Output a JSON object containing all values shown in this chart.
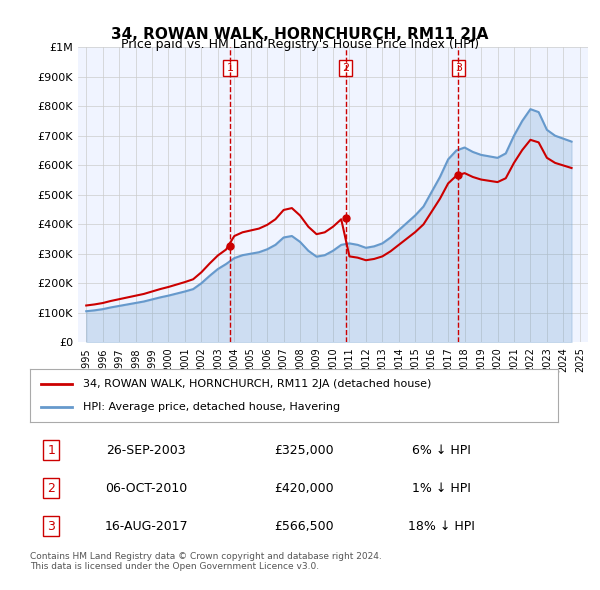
{
  "title": "34, ROWAN WALK, HORNCHURCH, RM11 2JA",
  "subtitle": "Price paid vs. HM Land Registry's House Price Index (HPI)",
  "hpi_years": [
    1995,
    1995.5,
    1996,
    1996.5,
    1997,
    1997.5,
    1998,
    1998.5,
    1999,
    1999.5,
    2000,
    2000.5,
    2001,
    2001.5,
    2002,
    2002.5,
    2003,
    2003.5,
    2004,
    2004.5,
    2005,
    2005.5,
    2006,
    2006.5,
    2007,
    2007.5,
    2008,
    2008.5,
    2009,
    2009.5,
    2010,
    2010.5,
    2011,
    2011.5,
    2012,
    2012.5,
    2013,
    2013.5,
    2014,
    2014.5,
    2015,
    2015.5,
    2016,
    2016.5,
    2017,
    2017.5,
    2018,
    2018.5,
    2019,
    2019.5,
    2020,
    2020.5,
    2021,
    2021.5,
    2022,
    2022.5,
    2023,
    2023.5,
    2024,
    2024.5
  ],
  "hpi_values": [
    105000,
    108000,
    112000,
    118000,
    123000,
    128000,
    133000,
    138000,
    145000,
    152000,
    158000,
    165000,
    172000,
    180000,
    200000,
    225000,
    248000,
    265000,
    285000,
    295000,
    300000,
    305000,
    315000,
    330000,
    355000,
    360000,
    340000,
    310000,
    290000,
    295000,
    310000,
    330000,
    335000,
    330000,
    320000,
    325000,
    335000,
    355000,
    380000,
    405000,
    430000,
    460000,
    510000,
    560000,
    620000,
    650000,
    660000,
    645000,
    635000,
    630000,
    625000,
    640000,
    700000,
    750000,
    790000,
    780000,
    720000,
    700000,
    690000,
    680000
  ],
  "sale_years": [
    2003.73,
    2010.76,
    2017.62
  ],
  "sale_values": [
    325000,
    420000,
    566500
  ],
  "sale_labels": [
    "1",
    "2",
    "3"
  ],
  "vline_color": "#cc0000",
  "hpi_color": "#6699cc",
  "sale_color": "#cc0000",
  "bg_color": "#f0f4ff",
  "plot_bg": "#ffffff",
  "ylim": [
    0,
    1000000
  ],
  "xlim": [
    1994.5,
    2025.5
  ],
  "legend1": "34, ROWAN WALK, HORNCHURCH, RM11 2JA (detached house)",
  "legend2": "HPI: Average price, detached house, Havering",
  "table_data": [
    [
      "1",
      "26-SEP-2003",
      "£325,000",
      "6% ↓ HPI"
    ],
    [
      "2",
      "06-OCT-2010",
      "£420,000",
      "1% ↓ HPI"
    ],
    [
      "3",
      "16-AUG-2017",
      "£566,500",
      "18% ↓ HPI"
    ]
  ],
  "footer": "Contains HM Land Registry data © Crown copyright and database right 2024.\nThis data is licensed under the Open Government Licence v3.0.",
  "yticks": [
    0,
    100000,
    200000,
    300000,
    400000,
    500000,
    600000,
    700000,
    800000,
    900000,
    1000000
  ],
  "ytick_labels": [
    "£0",
    "£100K",
    "£200K",
    "£300K",
    "£400K",
    "£500K",
    "£600K",
    "£700K",
    "£800K",
    "£900K",
    "£1M"
  ]
}
